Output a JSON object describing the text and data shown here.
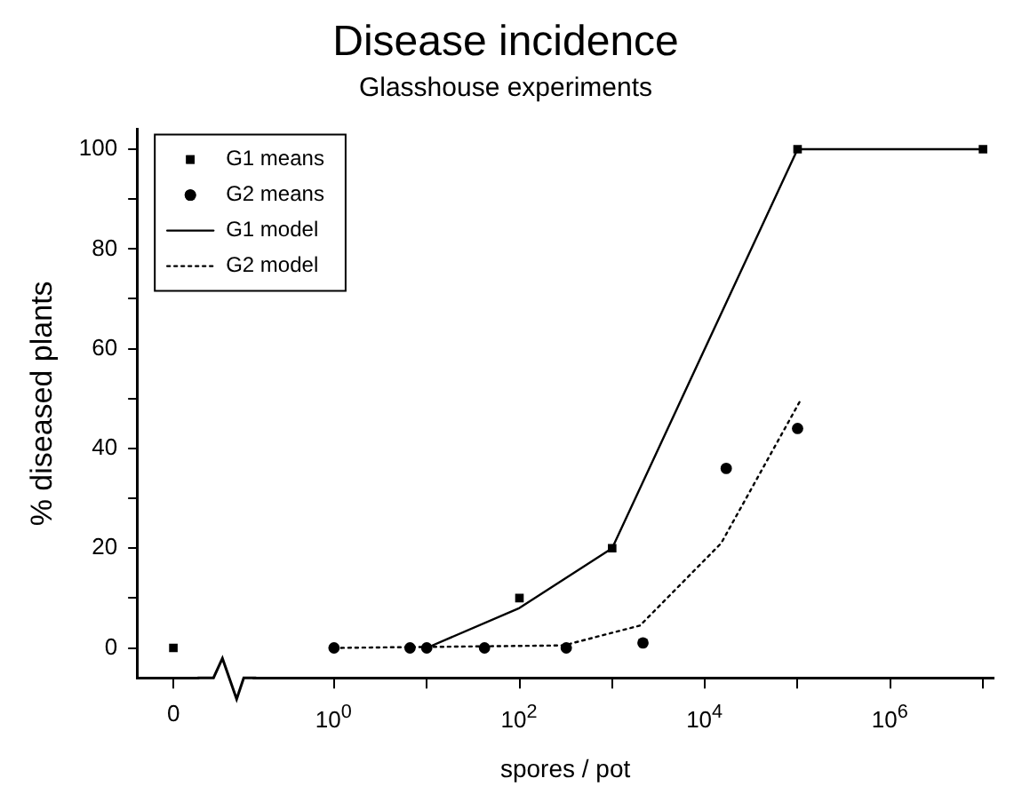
{
  "chart_data": {
    "type": "scatter",
    "title": "Disease incidence",
    "subtitle": "Glasshouse experiments",
    "xlabel": "spores / pot",
    "ylabel": "% diseased plants",
    "log": "x",
    "grid": false,
    "legend": "top left",
    "xlim": [
      0.0075,
      13000000
    ],
    "ylim": [
      -6,
      104
    ],
    "xticks": [
      {
        "value": 0.0185,
        "label": "0"
      },
      {
        "value": 1,
        "label": "10$^{0}$"
      },
      {
        "value": 10,
        "label": null
      },
      {
        "value": 100,
        "label": "10$^{2}$"
      },
      {
        "value": 1000,
        "label": null
      },
      {
        "value": 10000,
        "label": "10$^{4}$"
      },
      {
        "value": 100000,
        "label": null
      },
      {
        "value": 1000000,
        "label": "10$^{6}$"
      },
      {
        "value": 10000000,
        "label": null
      }
    ],
    "yticks": [
      0,
      {
        "value": 10,
        "label": null
      },
      20,
      {
        "value": 30,
        "label": null
      },
      40,
      {
        "value": 50,
        "label": null
      },
      60,
      {
        "value": 70,
        "label": null
      },
      80,
      {
        "value": 90,
        "label": null
      },
      100
    ],
    "series": [
      {
        "name": "G1 means",
        "type": "scatter",
        "marker": "square",
        "color": "#000000",
        "x": [
          0.0185,
          100,
          1000,
          100000,
          10000000
        ],
        "values": [
          0,
          10,
          20,
          100,
          100
        ]
      },
      {
        "name": "G2 means",
        "type": "scatter",
        "marker": "circle",
        "color": "#000000",
        "x": [
          1,
          6.6,
          10,
          42,
          320,
          2150,
          17000,
          100000
        ],
        "values": [
          0,
          0,
          0,
          0,
          0,
          1,
          36,
          44
        ]
      },
      {
        "name": "G1 model",
        "type": "line",
        "marker": "none",
        "line_style": "solid",
        "color": "#000000",
        "x": [
          10,
          100,
          1000,
          100000,
          10000000
        ],
        "values": [
          0,
          8,
          20,
          100,
          100
        ]
      },
      {
        "name": "G2 model",
        "type": "line",
        "marker": "none",
        "line_style": "dotted",
        "color": "#000000",
        "x": [
          1,
          300,
          2000,
          15000,
          110000
        ],
        "values": [
          0,
          0.5,
          4.5,
          21,
          50
        ]
      }
    ]
  }
}
